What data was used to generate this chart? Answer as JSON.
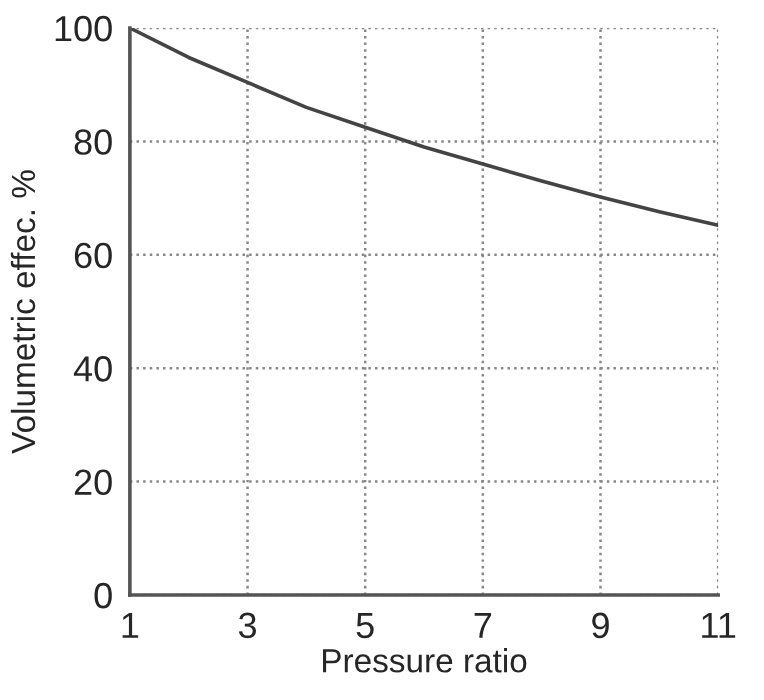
{
  "chart_data": {
    "type": "line",
    "xlabel": "Pressure ratio",
    "ylabel": "Volumetric effec. %",
    "x": [
      1,
      2,
      3,
      4,
      5,
      6,
      7,
      8,
      9,
      10,
      11
    ],
    "series": [
      {
        "color": "#444444",
        "values": [
          100,
          94.8,
          90.4,
          86,
          82.5,
          79,
          76,
          73,
          70.2,
          67.6,
          65.2
        ]
      }
    ],
    "xlim": [
      1,
      11
    ],
    "ylim": [
      0,
      100
    ],
    "xticks": [
      1,
      3,
      5,
      7,
      9,
      11
    ],
    "yticks": [
      0,
      20,
      40,
      60,
      80,
      100
    ],
    "grid": true,
    "line_style": "solid",
    "marker": "none"
  }
}
